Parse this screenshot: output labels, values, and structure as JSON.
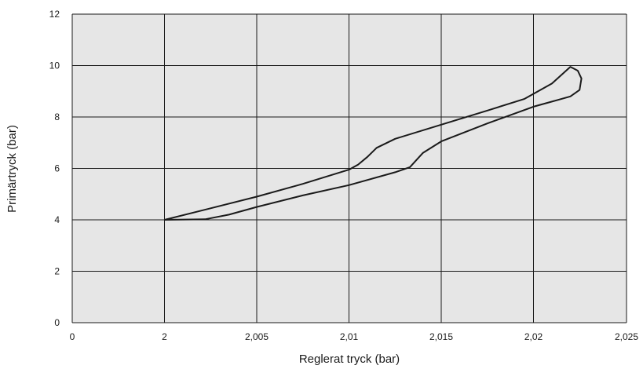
{
  "chart_data": {
    "type": "line",
    "title": "",
    "xlabel": "Reglerat tryck  (bar)",
    "ylabel": "Primärtryck (bar)",
    "x_tick_labels": [
      "0",
      "2",
      "2,005",
      "2,01",
      "2,015",
      "2,02",
      "2,025"
    ],
    "y_tick_labels": [
      "0",
      "2",
      "4",
      "6",
      "8",
      "10",
      "12"
    ],
    "y_ticks": [
      0,
      2,
      4,
      6,
      8,
      10,
      12
    ],
    "ylim": [
      0,
      12
    ],
    "x_axis_note": "broken axis: 0 followed by 2 to 2,025 in steps of 0,005",
    "grid": true,
    "background": "#e6e6e6",
    "line_color": "#1a1a1a",
    "series": [
      {
        "points": [
          [
            2.0,
            4.0
          ],
          [
            2.0025,
            4.45
          ],
          [
            2.005,
            4.9
          ],
          [
            2.0075,
            5.4
          ],
          [
            2.01,
            5.95
          ],
          [
            2.0105,
            6.15
          ],
          [
            2.011,
            6.45
          ],
          [
            2.0115,
            6.8
          ],
          [
            2.0125,
            7.15
          ],
          [
            2.015,
            7.7
          ],
          [
            2.0175,
            8.25
          ],
          [
            2.0195,
            8.7
          ],
          [
            2.021,
            9.3
          ],
          [
            2.022,
            9.95
          ],
          [
            2.0224,
            9.8
          ],
          [
            2.0226,
            9.5
          ],
          [
            2.0225,
            9.05
          ],
          [
            2.022,
            8.8
          ],
          [
            2.021,
            8.6
          ],
          [
            2.02,
            8.4
          ],
          [
            2.0175,
            7.75
          ],
          [
            2.015,
            7.05
          ],
          [
            2.014,
            6.6
          ],
          [
            2.0133,
            6.05
          ],
          [
            2.0125,
            5.85
          ],
          [
            2.01,
            5.35
          ],
          [
            2.0075,
            4.95
          ],
          [
            2.005,
            4.5
          ],
          [
            2.0035,
            4.2
          ],
          [
            2.0022,
            4.02
          ],
          [
            2.0,
            4.0
          ]
        ]
      }
    ]
  }
}
